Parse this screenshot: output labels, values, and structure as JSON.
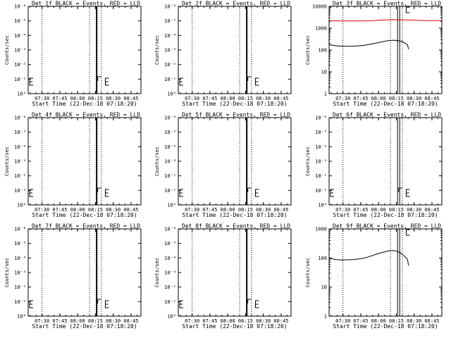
{
  "figure": {
    "xlabel": "Start Time (22-Dec-18 07:18:20)",
    "ylabel": "Counts/sec",
    "xticks": [
      "07:30",
      "07:45",
      "08:00",
      "08:15",
      "08:30",
      "08:45"
    ],
    "colors": {
      "events": "#000000",
      "lld": "#e00000",
      "background": "#ffffff"
    }
  },
  "chart_data": [
    {
      "type": "line",
      "title": "Det 1f BLACK = Events, RED = LLD",
      "xlabel": "Start Time (22-Dec-18 07:18:20)",
      "ylabel": "Counts/sec",
      "x_unit": "minutes after 07:18:20",
      "xlim": [
        0,
        95
      ],
      "y_scale": "log",
      "ytick_labels": [
        "10⁰",
        "10⁻¹",
        "10⁻²",
        "10⁻³",
        "10⁻⁴",
        "10⁻⁵",
        "10⁻⁶"
      ],
      "xticks": [
        "07:30",
        "07:45",
        "08:00",
        "08:15",
        "08:30",
        "08:45"
      ],
      "dotted_lines_x": [
        11.7,
        51.7,
        61.7
      ],
      "solid_lines_x": [
        57.7
      ],
      "series": []
    },
    {
      "type": "line",
      "title": "Det 2f BLACK = Events, RED = LLD",
      "xlabel": "Start Time (22-Dec-18 07:18:20)",
      "ylabel": "Counts/sec",
      "x_unit": "minutes after 07:18:20",
      "xlim": [
        0,
        95
      ],
      "y_scale": "log",
      "ytick_labels": [
        "10⁰",
        "10⁻¹",
        "10⁻²",
        "10⁻³",
        "10⁻⁴",
        "10⁻⁵",
        "10⁻⁶"
      ],
      "xticks": [
        "07:30",
        "07:45",
        "08:00",
        "08:15",
        "08:30",
        "08:45"
      ],
      "dotted_lines_x": [
        11.7,
        51.7,
        61.7
      ],
      "solid_lines_x": [
        57.7
      ],
      "series": []
    },
    {
      "type": "line",
      "title": "Det 3f BLACK = Events, RED = LLD",
      "xlabel": "Start Time (22-Dec-18 07:18:20)",
      "ylabel": "Counts/sec",
      "x_unit": "minutes after 07:18:20",
      "xlim": [
        0,
        95
      ],
      "y_scale": "log",
      "ylim": [
        1,
        10000
      ],
      "ytick_labels": [
        "1",
        "10",
        "100",
        "1000",
        "10000"
      ],
      "xticks": [
        "07:30",
        "07:45",
        "08:00",
        "08:15",
        "08:30",
        "08:45"
      ],
      "dotted_lines_x": [
        11.7,
        51.7,
        61.7
      ],
      "solid_lines_x": [
        57.7,
        59.5
      ],
      "series": [
        {
          "role": "LLD",
          "color": "#e00000",
          "x": [
            0,
            5,
            10,
            15,
            20,
            25,
            30,
            35,
            40,
            45,
            50,
            55,
            60,
            65,
            70,
            75,
            80,
            85,
            90,
            95
          ],
          "y": [
            2200,
            2170,
            2150,
            2140,
            2130,
            2140,
            2150,
            2200,
            2280,
            2350,
            2420,
            2450,
            2420,
            2380,
            2330,
            2280,
            2250,
            2220,
            2210,
            2200
          ]
        },
        {
          "role": "Events",
          "color": "#000000",
          "x": [
            0,
            3,
            6,
            10,
            15,
            20,
            25,
            30,
            35,
            40,
            45,
            50,
            55,
            58,
            60,
            62,
            64,
            66,
            67
          ],
          "y": [
            175,
            165,
            155,
            150,
            148,
            150,
            155,
            165,
            185,
            210,
            240,
            270,
            280,
            270,
            255,
            235,
            205,
            175,
            110
          ]
        }
      ]
    },
    {
      "type": "line",
      "title": "Det 4f BLACK = Events, RED = LLD",
      "xlabel": "Start Time (22-Dec-18 07:18:20)",
      "ylabel": "Counts/sec",
      "x_unit": "minutes after 07:18:20",
      "xlim": [
        0,
        95
      ],
      "y_scale": "log",
      "ytick_labels": [
        "10⁰",
        "10⁻¹",
        "10⁻²",
        "10⁻³",
        "10⁻⁴",
        "10⁻⁵",
        "10⁻⁶"
      ],
      "xticks": [
        "07:30",
        "07:45",
        "08:00",
        "08:15",
        "08:30",
        "08:45"
      ],
      "dotted_lines_x": [
        11.7,
        51.7,
        61.7
      ],
      "solid_lines_x": [
        57.7
      ],
      "series": []
    },
    {
      "type": "line",
      "title": "Det 5f BLACK = Events, RED = LLD",
      "xlabel": "Start Time (22-Dec-18 07:18:20)",
      "ylabel": "Counts/sec",
      "x_unit": "minutes after 07:18:20",
      "xlim": [
        0,
        95
      ],
      "y_scale": "log",
      "ytick_labels": [
        "10⁰",
        "10⁻¹",
        "10⁻²",
        "10⁻³",
        "10⁻⁴",
        "10⁻⁵",
        "10⁻⁶"
      ],
      "xticks": [
        "07:30",
        "07:45",
        "08:00",
        "08:15",
        "08:30",
        "08:45"
      ],
      "dotted_lines_x": [
        11.7,
        51.7,
        61.7
      ],
      "solid_lines_x": [
        57.7
      ],
      "series": []
    },
    {
      "type": "line",
      "title": "Det 6f BLACK = Events, RED = LLD",
      "xlabel": "Start Time (22-Dec-18 07:18:20)",
      "ylabel": "Counts/sec",
      "x_unit": "minutes after 07:18:20",
      "xlim": [
        0,
        95
      ],
      "y_scale": "log",
      "ytick_labels": [
        "10⁰",
        "10⁻¹",
        "10⁻²",
        "10⁻³",
        "10⁻⁴",
        "10⁻⁵",
        "10⁻⁶"
      ],
      "xticks": [
        "07:30",
        "07:45",
        "08:00",
        "08:15",
        "08:30",
        "08:45"
      ],
      "dotted_lines_x": [
        11.7,
        51.7,
        61.7
      ],
      "solid_lines_x": [
        57.7,
        59.5
      ],
      "series": []
    },
    {
      "type": "line",
      "title": "Det 7f BLACK = Events, RED = LLD",
      "xlabel": "Start Time (22-Dec-18 07:18:20)",
      "ylabel": "Counts/sec",
      "x_unit": "minutes after 07:18:20",
      "xlim": [
        0,
        95
      ],
      "y_scale": "log",
      "ytick_labels": [
        "10⁰",
        "10⁻¹",
        "10⁻²",
        "10⁻³",
        "10⁻⁴",
        "10⁻⁵",
        "10⁻⁶"
      ],
      "xticks": [
        "07:30",
        "07:45",
        "08:00",
        "08:15",
        "08:30",
        "08:45"
      ],
      "dotted_lines_x": [
        11.7,
        51.7,
        61.7
      ],
      "solid_lines_x": [
        57.7
      ],
      "series": []
    },
    {
      "type": "line",
      "title": "Det 8f BLACK = Events, RED = LLD",
      "xlabel": "Start Time (22-Dec-18 07:18:20)",
      "ylabel": "Counts/sec",
      "x_unit": "minutes after 07:18:20",
      "xlim": [
        0,
        95
      ],
      "y_scale": "log",
      "ytick_labels": [
        "10⁰",
        "10⁻¹",
        "10⁻²",
        "10⁻³",
        "10⁻⁴",
        "10⁻⁵",
        "10⁻⁶"
      ],
      "xticks": [
        "07:30",
        "07:45",
        "08:00",
        "08:15",
        "08:30",
        "08:45"
      ],
      "dotted_lines_x": [
        11.7,
        51.7,
        61.7
      ],
      "solid_lines_x": [
        57.7
      ],
      "series": []
    },
    {
      "type": "line",
      "title": "Det 9f BLACK = Events, RED = LLD",
      "xlabel": "Start Time (22-Dec-18 07:18:20)",
      "ylabel": "Counts/sec",
      "x_unit": "minutes after 07:18:20",
      "xlim": [
        0,
        95
      ],
      "y_scale": "log",
      "ylim": [
        1,
        1000
      ],
      "ytick_labels": [
        "1",
        "10",
        "100",
        "1000"
      ],
      "xticks": [
        "07:30",
        "07:45",
        "08:00",
        "08:15",
        "08:30",
        "08:45"
      ],
      "dotted_lines_x": [
        11.7,
        51.7,
        61.7
      ],
      "solid_lines_x": [
        57.7,
        59.5
      ],
      "series": [
        {
          "role": "Events",
          "color": "#000000",
          "x": [
            0,
            3,
            6,
            10,
            15,
            20,
            25,
            30,
            35,
            40,
            45,
            50,
            53,
            56,
            58,
            60,
            62,
            64,
            66,
            67
          ],
          "y": [
            100,
            92,
            88,
            85,
            86,
            88,
            92,
            100,
            115,
            135,
            155,
            175,
            180,
            175,
            165,
            150,
            130,
            110,
            90,
            55
          ]
        }
      ]
    }
  ]
}
